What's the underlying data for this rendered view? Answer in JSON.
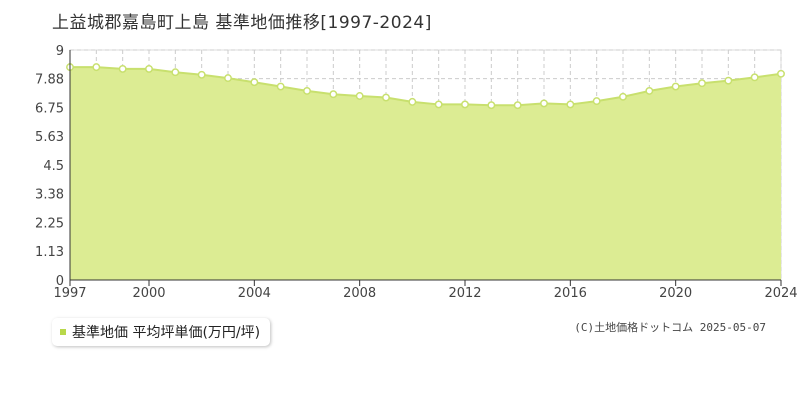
{
  "title": "上益城郡嘉島町上島 基準地価推移[1997-2024]",
  "legend": {
    "label": "基準地価 平均坪単価(万円/坪)"
  },
  "copyright": "(C)土地価格ドットコム 2025-05-07",
  "colors": {
    "fill": "#dcec93",
    "line": "#c8e06e",
    "grid": "#cccccc",
    "point": "#ffffff",
    "legend_swatch": "#b8d84a"
  },
  "chart_data": {
    "type": "area",
    "title": "上益城郡嘉島町上島 基準地価推移[1997-2024]",
    "xlabel": "",
    "ylabel": "",
    "xlim": [
      1997,
      2024
    ],
    "ylim": [
      0,
      9
    ],
    "y_ticks": [
      "0",
      "1.13",
      "2.25",
      "3.38",
      "4.5",
      "5.63",
      "6.75",
      "7.88",
      "9"
    ],
    "x_ticks": [
      "1997",
      "2000",
      "2004",
      "2008",
      "2012",
      "2016",
      "2020",
      "2024"
    ],
    "grid": true,
    "legend_position": "bottom-left",
    "series": [
      {
        "name": "基準地価 平均坪単価(万円/坪)",
        "x": [
          1997,
          1998,
          1999,
          2000,
          2001,
          2002,
          2003,
          2004,
          2005,
          2006,
          2007,
          2008,
          2009,
          2010,
          2011,
          2012,
          2013,
          2014,
          2015,
          2016,
          2017,
          2018,
          2019,
          2020,
          2021,
          2022,
          2023,
          2024
        ],
        "values": [
          8.33,
          8.33,
          8.26,
          8.26,
          8.13,
          8.03,
          7.9,
          7.74,
          7.57,
          7.4,
          7.27,
          7.2,
          7.14,
          6.97,
          6.87,
          6.87,
          6.84,
          6.84,
          6.91,
          6.87,
          7.0,
          7.17,
          7.4,
          7.57,
          7.7,
          7.8,
          7.93,
          8.07
        ]
      }
    ]
  }
}
